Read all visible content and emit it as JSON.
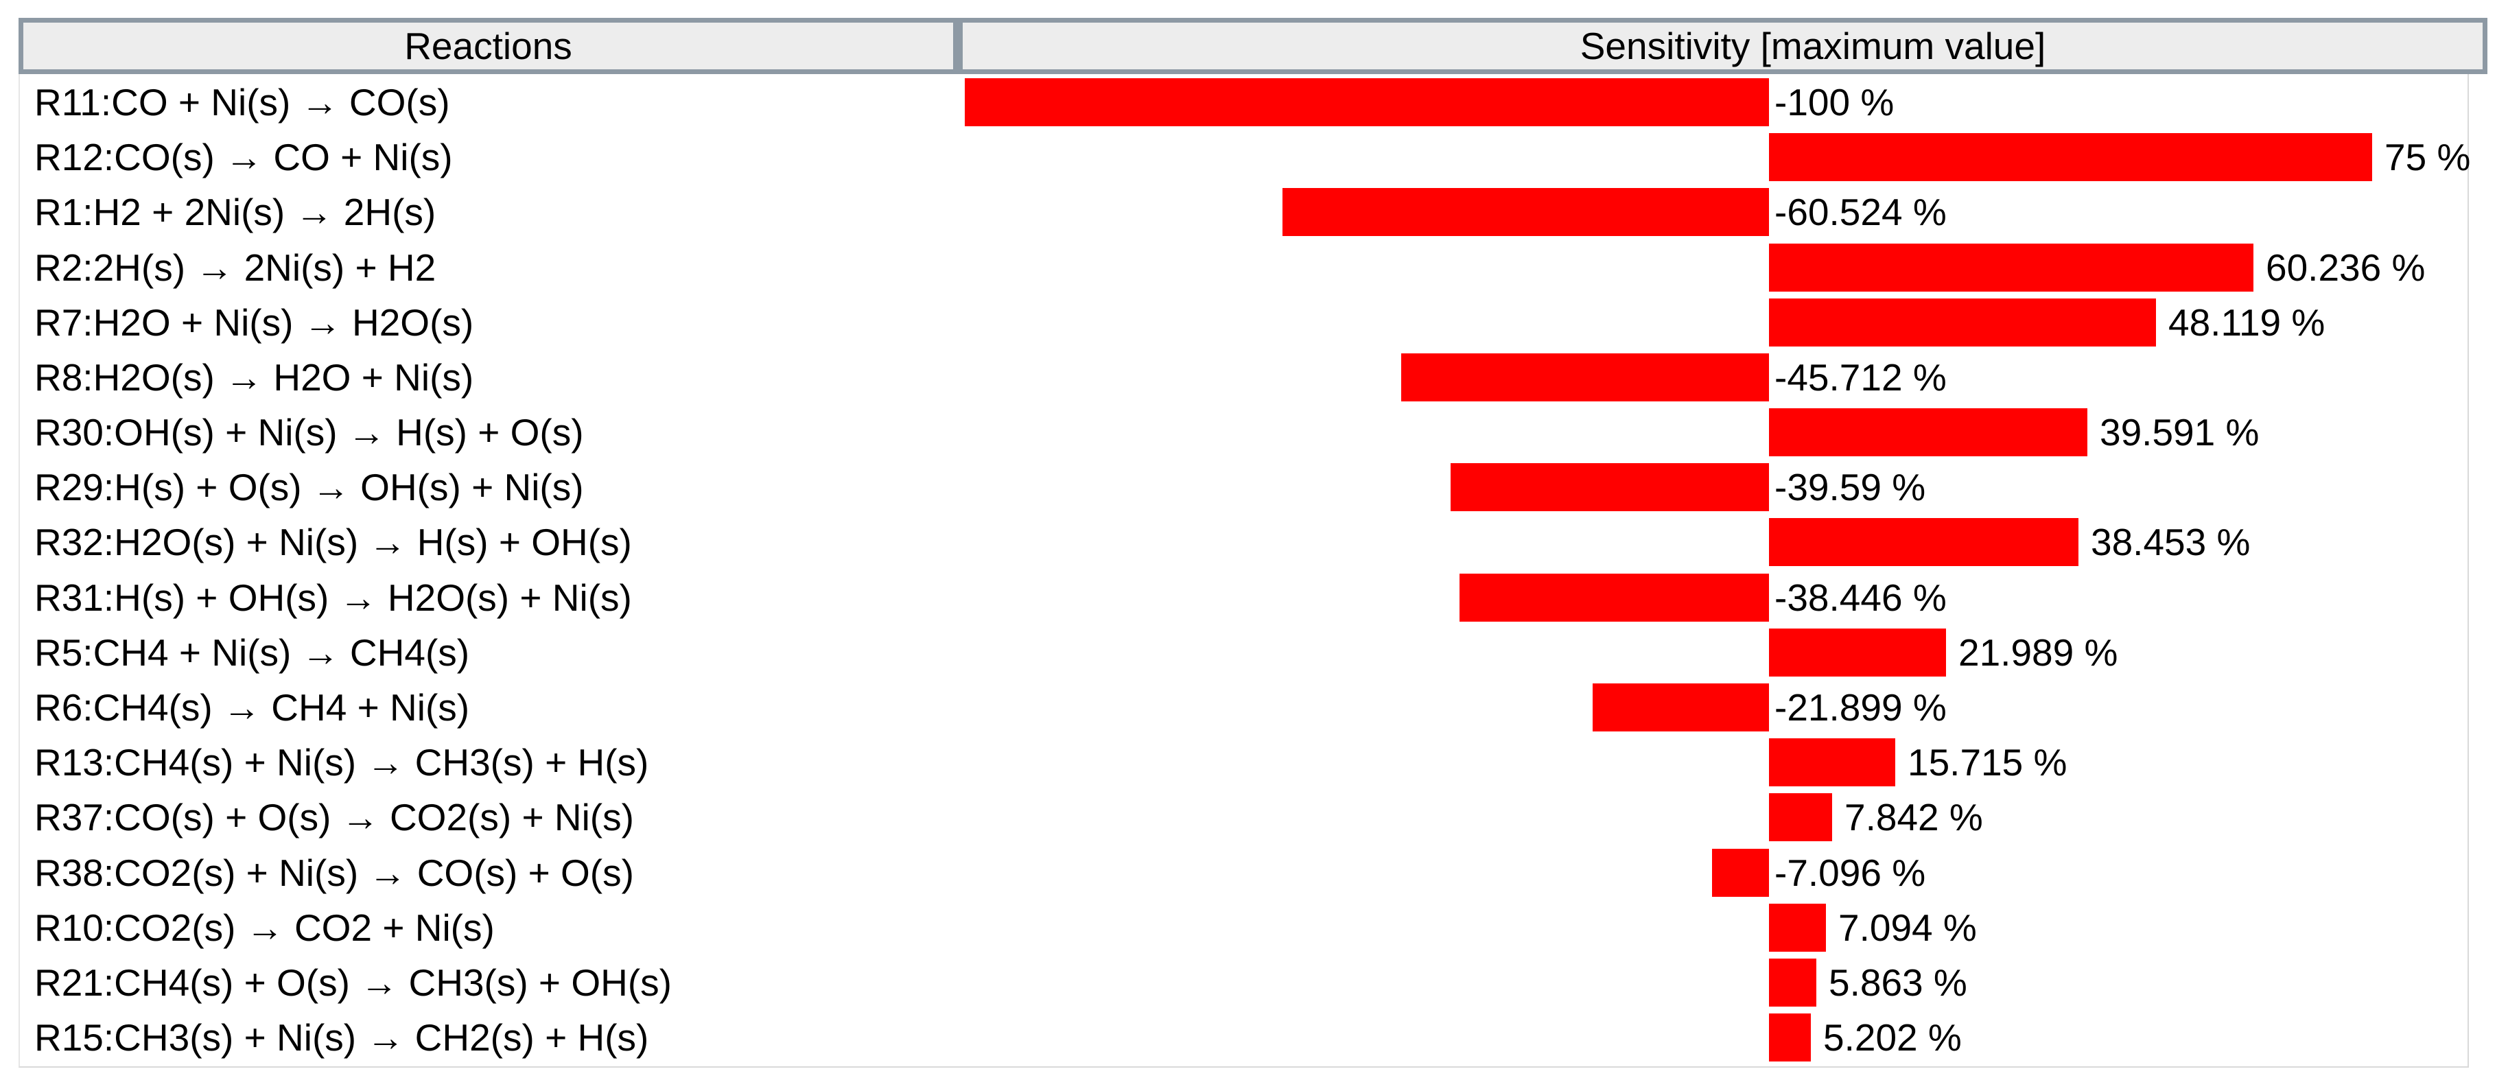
{
  "header": {
    "reactions_label": "Reactions",
    "sensitivity_label": "Sensitivity [maximum value]"
  },
  "chart_data": {
    "type": "bar",
    "orientation": "horizontal",
    "title": "Sensitivity [maximum value]",
    "category_header": "Reactions",
    "unit": "%",
    "bar_color": "#ff0000",
    "header_fill_color": "#ededed",
    "header_frame_color": "#8d99a4",
    "xlim": [
      -100,
      87
    ],
    "grid": false,
    "legend": false,
    "value_label_position": "outside bar end; negative bars labeled at zero axis",
    "categories": [
      "R11:CO + Ni(s) → CO(s)",
      "R12:CO(s) → CO + Ni(s)",
      "R1:H2 + 2Ni(s) → 2H(s)",
      "R2:2H(s) → 2Ni(s) + H2",
      "R7:H2O + Ni(s) → H2O(s)",
      "R8:H2O(s) → H2O + Ni(s)",
      "R30:OH(s) + Ni(s) → H(s) + O(s)",
      "R29:H(s) + O(s) → OH(s) + Ni(s)",
      "R32:H2O(s) + Ni(s) → H(s) + OH(s)",
      "R31:H(s) + OH(s) → H2O(s) + Ni(s)",
      "R5:CH4 + Ni(s) → CH4(s)",
      "R6:CH4(s) → CH4 + Ni(s)",
      "R13:CH4(s) + Ni(s) → CH3(s) + H(s)",
      "R37:CO(s) + O(s) → CO2(s) + Ni(s)",
      "R38:CO2(s) + Ni(s) → CO(s) + O(s)",
      "R10:CO2(s) → CO2 + Ni(s)",
      "R21:CH4(s) + O(s) → CH3(s) + OH(s)",
      "R15:CH3(s) + Ni(s) → CH2(s) + H(s)"
    ],
    "values": [
      -100,
      75,
      -60.524,
      60.236,
      48.119,
      -45.712,
      39.591,
      -39.59,
      38.453,
      -38.446,
      21.989,
      -21.899,
      15.715,
      7.842,
      -7.096,
      7.094,
      5.863,
      5.202
    ],
    "value_labels": [
      "-100 %",
      "75 %",
      "-60.524 %",
      "60.236 %",
      "48.119 %",
      "-45.712 %",
      "39.591 %",
      "-39.59 %",
      "38.453 %",
      "-38.446 %",
      "21.989 %",
      "-21.899 %",
      "15.715 %",
      "7.842 %",
      "-7.096 %",
      "7.094 %",
      "5.863 %",
      "5.202 %"
    ]
  }
}
